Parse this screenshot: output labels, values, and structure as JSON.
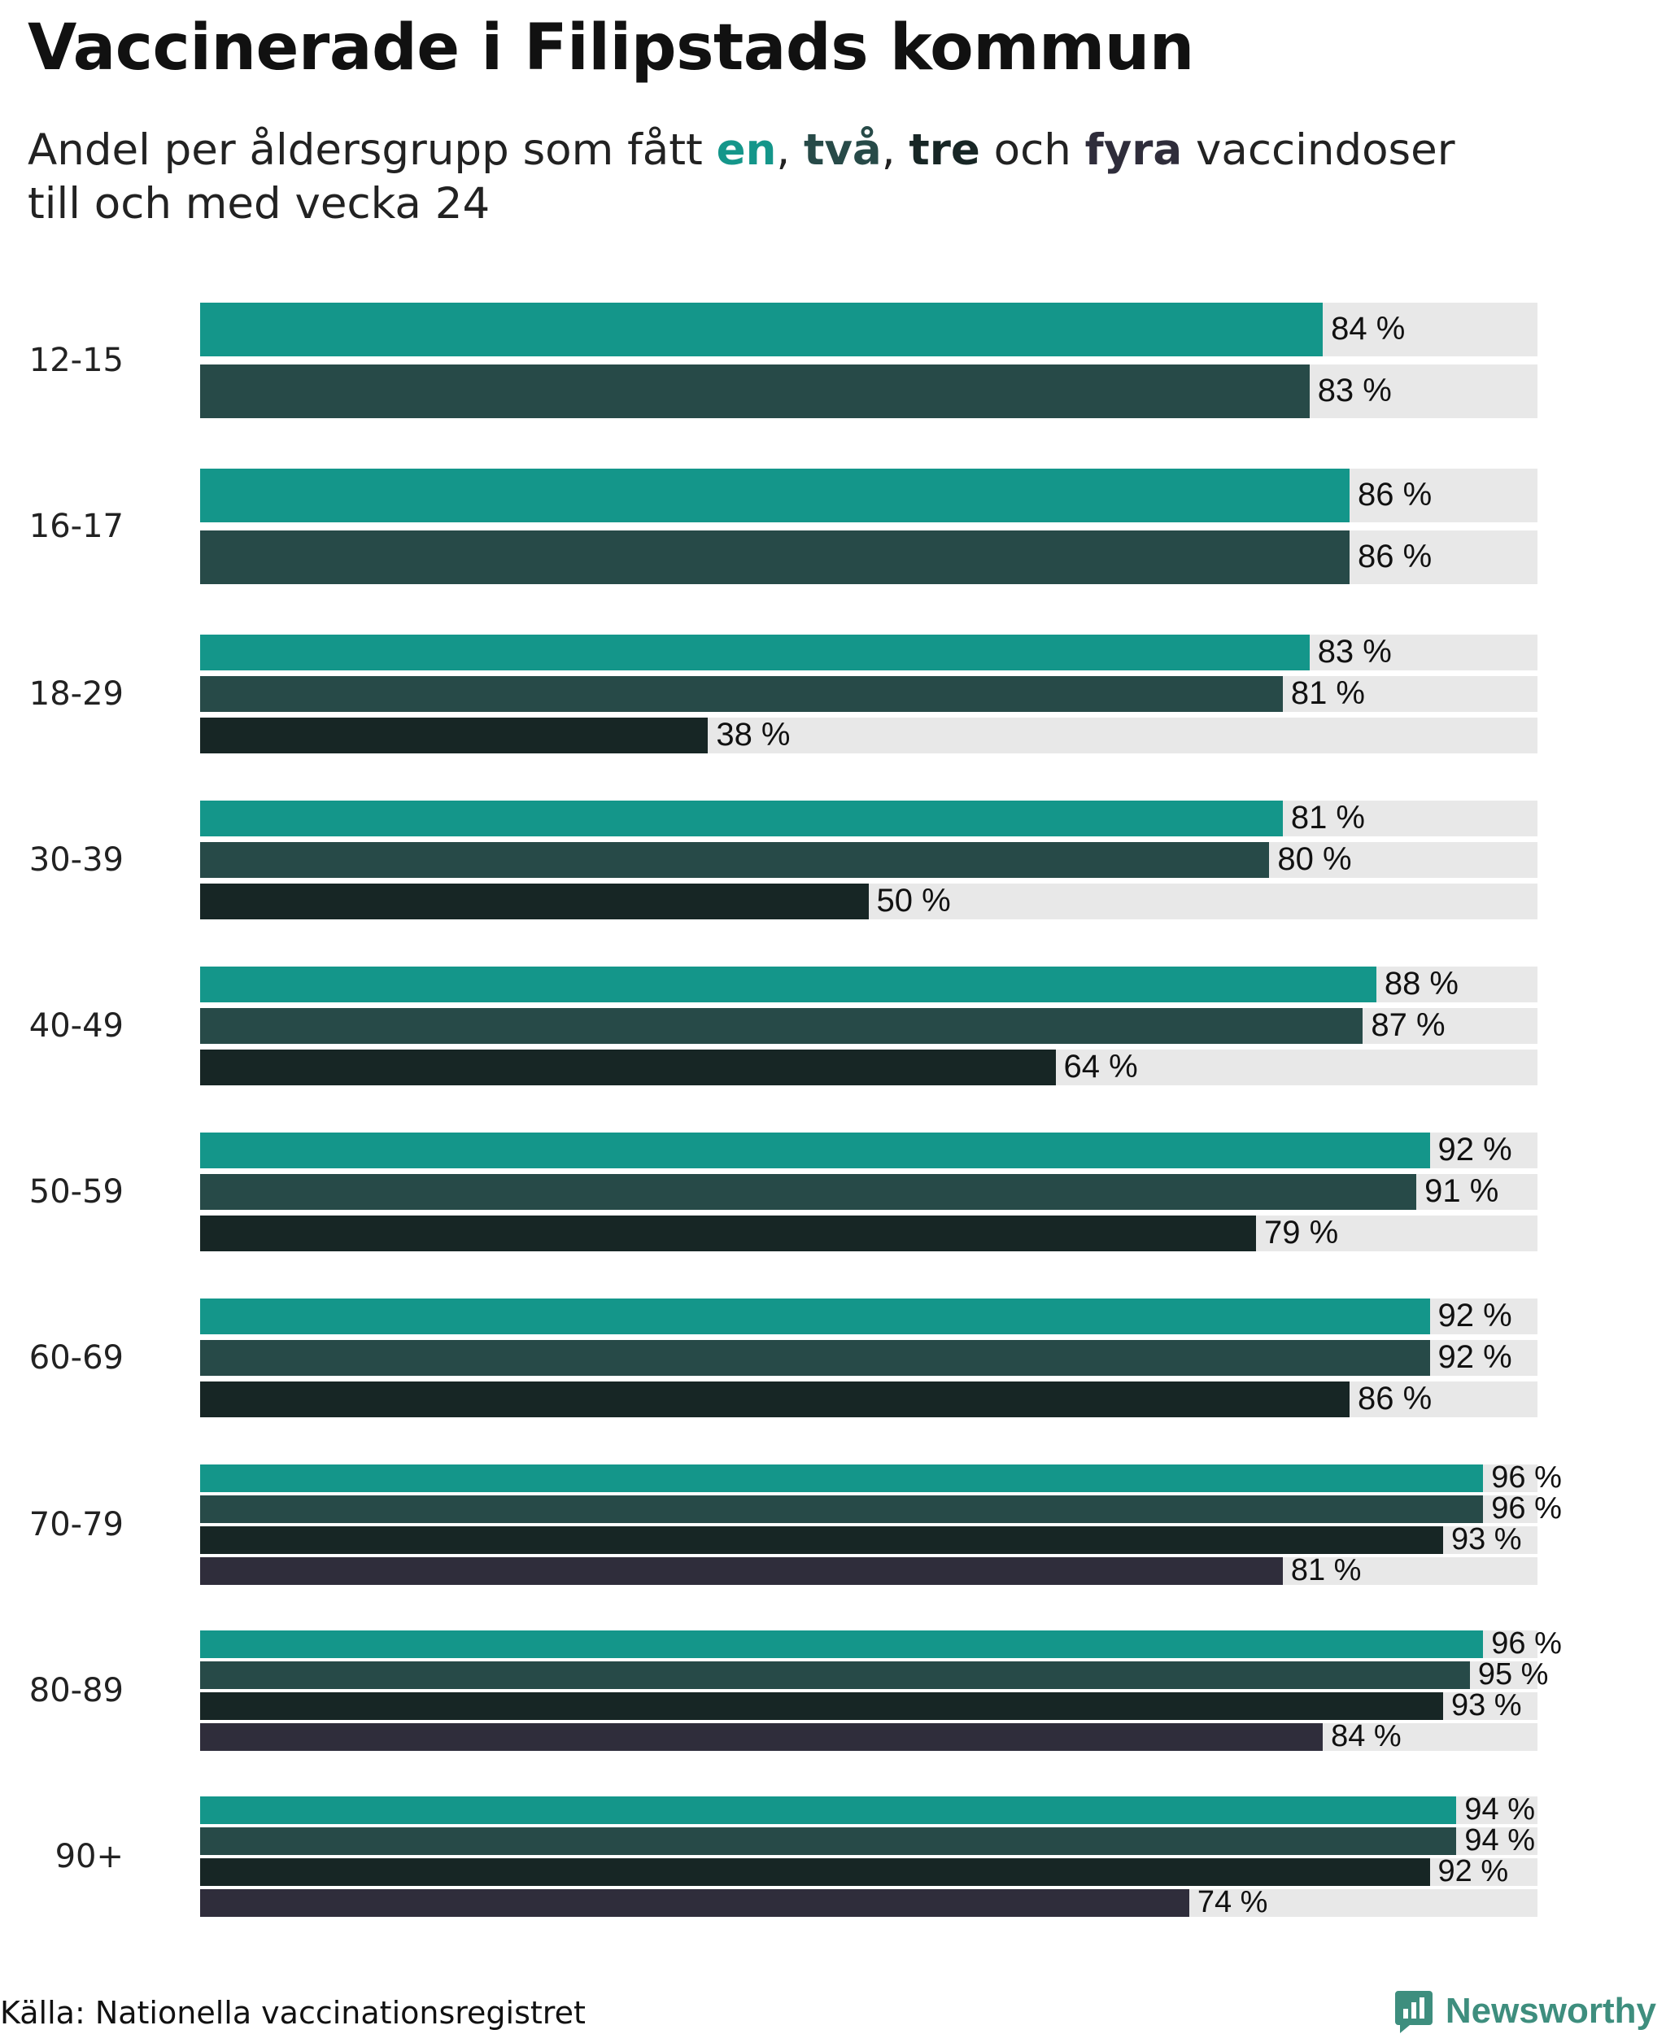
{
  "title": "Vaccinerade i Filipstads kommun",
  "subtitle": {
    "prefix": "Andel per åldersgrupp som fått ",
    "d1": "en",
    "sep1": ", ",
    "d2": "två",
    "sep2": ", ",
    "d3": "tre",
    "sep3": " och ",
    "d4": "fyra",
    "suffix": " vaccindoser",
    "line2": "till och med vecka 24"
  },
  "source": "Källa: Nationella vaccinationsregistret",
  "brand": "Newsworthy",
  "colors": {
    "dose1": "#14968a",
    "dose2": "#274a48",
    "dose3": "#172625",
    "dose4": "#2f2d3b",
    "track": "#e8e8e8"
  },
  "chart_data": {
    "type": "bar",
    "orientation": "horizontal",
    "title": "Vaccinerade i Filipstads kommun",
    "xlim": [
      0,
      100
    ],
    "value_suffix": " %",
    "categories": [
      "12-15",
      "16-17",
      "18-29",
      "30-39",
      "40-49",
      "50-59",
      "60-69",
      "70-79",
      "80-89",
      "90+"
    ],
    "series": [
      {
        "name": "en",
        "values": [
          84,
          86,
          83,
          81,
          88,
          92,
          92,
          96,
          96,
          94
        ]
      },
      {
        "name": "två",
        "values": [
          83,
          86,
          81,
          80,
          87,
          91,
          92,
          96,
          95,
          94
        ]
      },
      {
        "name": "tre",
        "values": [
          null,
          null,
          38,
          50,
          64,
          79,
          86,
          93,
          93,
          92
        ]
      },
      {
        "name": "fyra",
        "values": [
          null,
          null,
          null,
          null,
          null,
          null,
          null,
          81,
          84,
          74
        ]
      }
    ]
  }
}
